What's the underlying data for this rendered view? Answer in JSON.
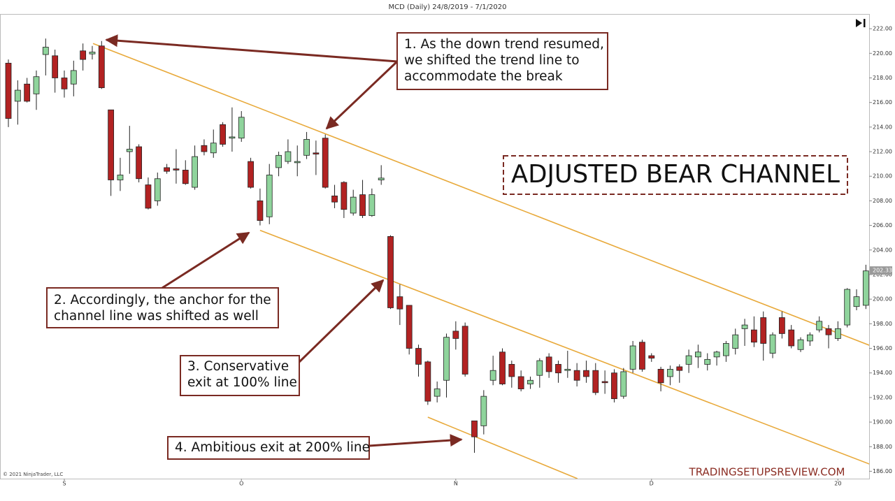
{
  "chart_data": {
    "type": "candlestick",
    "title": "MCD (Daily)  24/8/2019 - 7/1/2020",
    "categories": [
      null,
      null,
      null,
      null,
      null,
      null,
      "S",
      null,
      null,
      null,
      null,
      null,
      null,
      null,
      null,
      null,
      null,
      null,
      null,
      null,
      null,
      null,
      null,
      null,
      null,
      "O",
      null,
      null,
      null,
      null,
      null,
      null,
      null,
      null,
      null,
      null,
      null,
      null,
      null,
      null,
      null,
      null,
      null,
      null,
      null,
      null,
      null,
      null,
      "N",
      null,
      null,
      null,
      null,
      null,
      null,
      null,
      null,
      null,
      null,
      null,
      null,
      null,
      null,
      null,
      null,
      null,
      null,
      null,
      null,
      "D",
      null,
      null,
      null,
      null,
      null,
      null,
      null,
      null,
      null,
      null,
      null,
      null,
      null,
      null,
      null,
      null,
      null,
      null,
      null,
      "20",
      null,
      null,
      null
    ],
    "open": [
      219.2,
      216.1,
      217.5,
      216.7,
      219.9,
      219.8,
      218.0,
      217.5,
      220.2,
      219.95,
      220.6,
      215.4,
      209.7,
      212.0,
      212.4,
      209.3,
      208.0,
      210.7,
      210.6,
      210.5,
      209.1,
      212.5,
      211.9,
      214.2,
      213.1,
      213.1,
      211.2,
      208.0,
      206.7,
      210.7,
      211.2,
      211.1,
      211.7,
      211.9,
      213.1,
      208.4,
      209.5,
      207.0,
      208.5,
      206.8,
      209.7,
      205.1,
      200.2,
      199.5,
      196.0,
      194.9,
      192.1,
      193.4,
      197.4,
      197.8,
      190.1,
      189.7,
      193.4,
      195.7,
      194.7,
      193.7,
      193.1,
      193.8,
      195.3,
      194.7,
      194.2,
      194.2,
      194.2,
      194.2,
      193.3,
      194.0,
      192.1,
      194.3,
      196.5,
      195.4,
      194.3,
      193.7,
      194.5,
      194.7,
      195.3,
      194.7,
      195.3,
      195.4,
      196.0,
      197.6,
      197.5,
      198.5,
      195.6,
      198.5,
      197.5,
      195.9,
      196.6,
      197.5,
      197.6,
      196.8,
      197.9,
      199.4,
      199.5
    ],
    "high": [
      219.5,
      217.8,
      218,
      218.6,
      221.2,
      220.3,
      218.6,
      219.4,
      220.8,
      220.6,
      221,
      215.4,
      211.5,
      214.1,
      212.6,
      209.9,
      210.3,
      211,
      212.2,
      211.3,
      212.5,
      213.0,
      213.8,
      214.4,
      215.6,
      215.3,
      211.5,
      209.0,
      211.0,
      212.0,
      213.0,
      212.5,
      213.6,
      212.9,
      213.4,
      209.3,
      209.6,
      208.9,
      209.7,
      209.0,
      210.9,
      205.2,
      201.2,
      199.5,
      196.3,
      195.0,
      193.3,
      197.2,
      198.2,
      198.1,
      190.1,
      192.6,
      195.4,
      196.0,
      195.0,
      194.2,
      193.7,
      195.2,
      195.6,
      195.0,
      195.8,
      194.8,
      195.0,
      194.8,
      194.2,
      194.3,
      194.4,
      196.6,
      196.7,
      195.6,
      194.5,
      194.6,
      194.7,
      195.9,
      196.3,
      195.6,
      195.8,
      196.6,
      197.6,
      198.4,
      198.6,
      199.0,
      197.3,
      199.0,
      197.9,
      196.9,
      197.3,
      198.6,
      197.9,
      198.2,
      200.9,
      200.8,
      202.8
    ],
    "low": [
      214.0,
      214.2,
      216,
      215.4,
      218.2,
      216.8,
      216.4,
      216.5,
      218.6,
      219.5,
      217.1,
      208.4,
      208.8,
      210.2,
      209.5,
      207.3,
      207.6,
      210.2,
      209.4,
      209.3,
      208.9,
      211.7,
      211.5,
      212.4,
      212.0,
      212.8,
      209.0,
      206.0,
      206.1,
      210.0,
      211.0,
      210.0,
      211.4,
      210.1,
      209.0,
      207.4,
      206.6,
      206.8,
      206.6,
      206.7,
      209.3,
      199.2,
      197.9,
      195.5,
      193.7,
      191.4,
      191.6,
      192.0,
      195.9,
      193.7,
      187.5,
      189.0,
      193.0,
      193.0,
      192.8,
      192.5,
      192.7,
      192.8,
      193.6,
      193.2,
      193.6,
      192.9,
      193.2,
      192.2,
      192.3,
      191.6,
      191.9,
      194.0,
      194.1,
      194.9,
      192.5,
      193.0,
      193.2,
      194.0,
      194.4,
      194.2,
      194.6,
      194.9,
      195.5,
      196.2,
      196.1,
      195.0,
      195.2,
      196.8,
      196.0,
      195.7,
      196.2,
      197.3,
      196.0,
      196.6,
      197.7,
      199.1,
      199.2
    ],
    "close": [
      214.7,
      217.0,
      216.1,
      218.1,
      220.5,
      218.0,
      217.1,
      218.6,
      219.5,
      220.1,
      217.2,
      209.7,
      210.1,
      212.2,
      209.8,
      207.4,
      209.8,
      210.4,
      210.5,
      209.4,
      211.6,
      212.0,
      212.7,
      212.6,
      213.2,
      214.8,
      209.1,
      206.4,
      210.1,
      211.7,
      212.0,
      211.2,
      213.0,
      211.8,
      209.1,
      207.9,
      207.3,
      208.3,
      206.8,
      208.5,
      209.85,
      199.3,
      199.2,
      196.0,
      194.7,
      191.7,
      192.7,
      196.9,
      196.8,
      193.9,
      188.8,
      192.1,
      194.2,
      193.1,
      193.7,
      192.7,
      193.4,
      195.0,
      194.1,
      194.0,
      194.3,
      193.4,
      193.7,
      192.4,
      193.2,
      191.9,
      194.1,
      196.2,
      194.3,
      195.2,
      193.2,
      194.3,
      194.2,
      195.4,
      195.7,
      195.1,
      195.7,
      196.4,
      197.1,
      197.9,
      196.5,
      196.4,
      197.1,
      197.2,
      196.2,
      196.7,
      197.1,
      198.2,
      197.1,
      197.6,
      200.8,
      200.2,
      202.3
    ],
    "up_color": "#8fd49c",
    "down_color": "#b22222",
    "ylim": [
      185.4,
      223.2
    ],
    "yticks": [
      {
        "value": 186,
        "label": "186.00"
      },
      {
        "value": 188,
        "label": "188.00"
      },
      {
        "value": 190,
        "label": "190.00"
      },
      {
        "value": 192,
        "label": "192.00"
      },
      {
        "value": 194,
        "label": "194.00"
      },
      {
        "value": 196,
        "label": "196.00"
      },
      {
        "value": 198,
        "label": "198.00"
      },
      {
        "value": 200,
        "label": "200.00"
      },
      {
        "value": 202,
        "label": "202.00"
      },
      {
        "value": 204,
        "label": "204.00"
      },
      {
        "value": 206,
        "label": "206.00"
      },
      {
        "value": 208,
        "label": "208.00"
      },
      {
        "value": 210,
        "label": "210.00"
      },
      {
        "value": 212,
        "label": "212.00"
      },
      {
        "value": 214,
        "label": "214.00"
      },
      {
        "value": 216,
        "label": "216.00"
      },
      {
        "value": 218,
        "label": "218.00"
      },
      {
        "value": 220,
        "label": "220.00"
      },
      {
        "value": 222,
        "label": "222.00"
      }
    ],
    "last_price": 202.33,
    "trend_lines": [
      {
        "x": [
          9.08,
          94.4
        ],
        "y": [
          220.8,
          195.65
        ],
        "color": "#e8a93a"
      },
      {
        "x": [
          27.0,
          94.4
        ],
        "y": [
          205.6,
          186.0
        ],
        "color": "#e8a93a"
      },
      {
        "x": [
          45.0,
          61.05
        ],
        "y": [
          190.4,
          185.4
        ],
        "color": "#e8a93a"
      }
    ],
    "annotations": [
      {
        "lines": [
          "1. As the down trend resumed,",
          "we shifted the trend line to",
          "accommodate the break"
        ]
      },
      {
        "lines": [
          "2. Accordingly, the anchor for the",
          "channel line was shifted as well"
        ]
      },
      {
        "lines": [
          "3. Conservative",
          "exit at 100% line"
        ]
      },
      {
        "lines": [
          "4. Ambitious exit at 200% line"
        ]
      }
    ],
    "banner": "ADJUSTED BEAR CHANNEL",
    "watermark": "TRADINGSETUPSREVIEW.COM",
    "copyright": "© 2021 NinjaTrader, LLC"
  }
}
